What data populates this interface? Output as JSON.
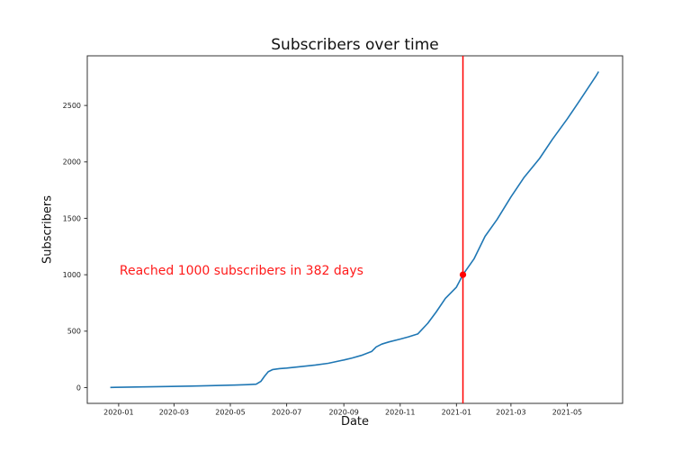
{
  "chart_data": {
    "type": "line",
    "title": "Subscribers over time",
    "xlabel": "Date",
    "ylabel": "Subscribers",
    "grid": false,
    "legend": null,
    "xlim": [
      "2019-11-28",
      "2021-06-30"
    ],
    "ylim": [
      -140,
      2940
    ],
    "xticks": [
      {
        "date": "2020-01-01",
        "label": "2020-01"
      },
      {
        "date": "2020-03-01",
        "label": "2020-03"
      },
      {
        "date": "2020-05-01",
        "label": "2020-05"
      },
      {
        "date": "2020-07-01",
        "label": "2020-07"
      },
      {
        "date": "2020-09-01",
        "label": "2020-09"
      },
      {
        "date": "2020-11-01",
        "label": "2020-11"
      },
      {
        "date": "2021-01-01",
        "label": "2021-01"
      },
      {
        "date": "2021-03-01",
        "label": "2021-03"
      },
      {
        "date": "2021-05-01",
        "label": "2021-05"
      }
    ],
    "yticks": [
      0,
      500,
      1000,
      1500,
      2000,
      2500
    ],
    "series": [
      {
        "name": "subscribers",
        "color": "#1f77b4",
        "points": [
          [
            "2019-12-23",
            1
          ],
          [
            "2020-01-05",
            3
          ],
          [
            "2020-01-20",
            5
          ],
          [
            "2020-02-05",
            7
          ],
          [
            "2020-02-20",
            9
          ],
          [
            "2020-03-05",
            11
          ],
          [
            "2020-03-20",
            13
          ],
          [
            "2020-04-05",
            16
          ],
          [
            "2020-04-20",
            19
          ],
          [
            "2020-05-05",
            22
          ],
          [
            "2020-05-20",
            26
          ],
          [
            "2020-05-29",
            30
          ],
          [
            "2020-06-03",
            55
          ],
          [
            "2020-06-07",
            100
          ],
          [
            "2020-06-11",
            140
          ],
          [
            "2020-06-16",
            160
          ],
          [
            "2020-06-23",
            168
          ],
          [
            "2020-07-01",
            173
          ],
          [
            "2020-07-15",
            185
          ],
          [
            "2020-08-01",
            200
          ],
          [
            "2020-08-15",
            215
          ],
          [
            "2020-09-01",
            245
          ],
          [
            "2020-09-10",
            262
          ],
          [
            "2020-09-20",
            285
          ],
          [
            "2020-10-01",
            320
          ],
          [
            "2020-10-06",
            360
          ],
          [
            "2020-10-12",
            385
          ],
          [
            "2020-10-20",
            405
          ],
          [
            "2020-11-01",
            430
          ],
          [
            "2020-11-10",
            450
          ],
          [
            "2020-11-20",
            475
          ],
          [
            "2020-12-01",
            570
          ],
          [
            "2020-12-10",
            670
          ],
          [
            "2020-12-20",
            790
          ],
          [
            "2021-01-01",
            890
          ],
          [
            "2021-01-08",
            1000
          ],
          [
            "2021-01-20",
            1140
          ],
          [
            "2021-02-01",
            1340
          ],
          [
            "2021-02-14",
            1490
          ],
          [
            "2021-03-01",
            1690
          ],
          [
            "2021-03-15",
            1860
          ],
          [
            "2021-04-01",
            2030
          ],
          [
            "2021-04-15",
            2200
          ],
          [
            "2021-05-01",
            2380
          ],
          [
            "2021-05-15",
            2550
          ],
          [
            "2021-06-01",
            2760
          ],
          [
            "2021-06-04",
            2800
          ]
        ]
      }
    ],
    "annotation": {
      "text": "Reached 1000 subscribers in 382 days",
      "color": "#ff1a1a",
      "x": "2020-01-02",
      "y": 1035
    },
    "milestone": {
      "date": "2021-01-08",
      "value": 1000,
      "line_color": "#ff0000",
      "dot_color": "#ff0000"
    }
  },
  "colors": {
    "background": "#ffffff",
    "axis": "#333333",
    "tick_text": "#1a1a1a",
    "title_text": "#111111"
  }
}
